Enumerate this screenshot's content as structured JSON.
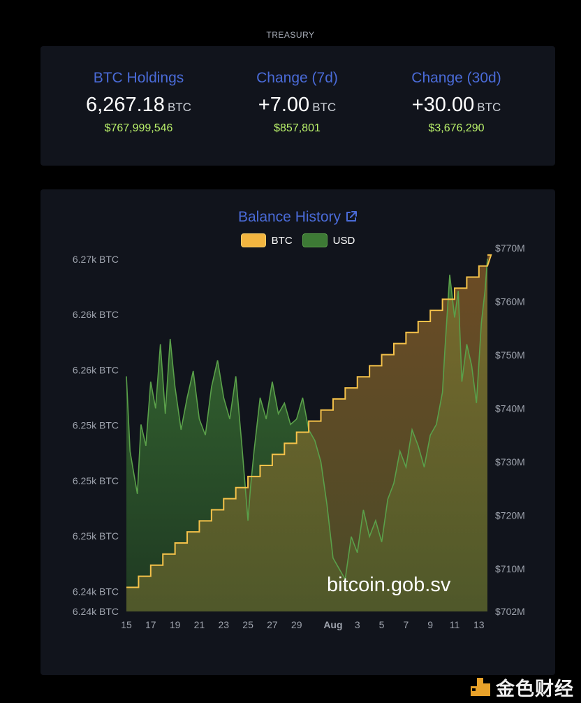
{
  "page": {
    "section_label": "TREASURY"
  },
  "stats": [
    {
      "title": "BTC Holdings",
      "value": "6,267.18",
      "unit": "BTC",
      "usd": "$767,999,546"
    },
    {
      "title": "Change (7d)",
      "value": "+7.00",
      "unit": "BTC",
      "usd": "$857,801"
    },
    {
      "title": "Change (30d)",
      "value": "+30.00",
      "unit": "BTC",
      "usd": "$3,676,290"
    }
  ],
  "colors": {
    "accent": "#4a6bd8",
    "usd_green": "#b9f06a",
    "btc_line": "#f5c24a",
    "usd_line": "#5aa04a",
    "card_bg": "#11141c"
  },
  "chart_data": {
    "type": "area",
    "title": "Balance History",
    "title_icon": "external-link-icon",
    "legend": [
      {
        "label": "BTC",
        "color": "#f5c24a"
      },
      {
        "label": "USD",
        "color": "#5aa04a"
      }
    ],
    "x_tick_labels": [
      "15",
      "17",
      "19",
      "21",
      "23",
      "25",
      "27",
      "29",
      "Aug",
      "3",
      "5",
      "7",
      "9",
      "11",
      "13"
    ],
    "x_tick_days": [
      0,
      2,
      4,
      6,
      8,
      10,
      12,
      14,
      17,
      19,
      21,
      23,
      25,
      27,
      29
    ],
    "x_range_days": [
      0,
      29.7
    ],
    "y_left_tick_labels": [
      "6.27k BTC",
      "6.26k BTC",
      "6.26k BTC",
      "6.25k BTC",
      "6.25k BTC",
      "6.25k BTC",
      "6.24k BTC",
      "6.24k BTC"
    ],
    "y_left_tick_values": [
      6266.8,
      6261.8,
      6256.8,
      6251.8,
      6246.8,
      6241.8,
      6236.8,
      6235
    ],
    "y_left_range": [
      6235,
      6267.8
    ],
    "y_right_tick_labels": [
      "$770M",
      "$760M",
      "$750M",
      "$740M",
      "$730M",
      "$720M",
      "$710M",
      "$702M"
    ],
    "y_right_tick_values": [
      770,
      760,
      750,
      740,
      730,
      720,
      710,
      702
    ],
    "y_right_range": [
      702,
      770
    ],
    "series": [
      {
        "name": "BTC",
        "axis": "left",
        "step": true,
        "values": [
          6237.18,
          6238.18,
          6239.18,
          6240.18,
          6241.18,
          6242.18,
          6243.18,
          6244.18,
          6245.18,
          6246.18,
          6247.18,
          6248.18,
          6249.18,
          6250.18,
          6251.18,
          6252.18,
          6253.18,
          6254.18,
          6255.18,
          6256.18,
          6257.18,
          6258.18,
          6259.18,
          6260.18,
          6261.18,
          6262.18,
          6263.18,
          6264.18,
          6265.18,
          6266.18,
          6267.18
        ]
      },
      {
        "name": "USD",
        "axis": "right",
        "x_days": [
          0,
          0.3,
          0.6,
          0.9,
          1.2,
          1.6,
          2,
          2.4,
          2.8,
          3.2,
          3.6,
          4,
          4.5,
          5,
          5.5,
          6,
          6.5,
          7,
          7.5,
          8,
          8.5,
          9,
          9.5,
          10,
          10.2,
          10.5,
          11,
          11.5,
          12,
          12.5,
          13,
          13.5,
          14,
          14.5,
          15,
          15.5,
          16,
          16.5,
          17,
          17.5,
          18,
          18.5,
          19,
          19.5,
          20,
          20.5,
          21,
          21.5,
          22,
          22.5,
          23,
          23.5,
          24,
          24.5,
          25,
          25.5,
          26,
          26.2,
          26.6,
          27,
          27.3,
          27.6,
          28,
          28.4,
          28.8,
          29.2,
          29.5,
          29.7
        ],
        "values": [
          746,
          732,
          728,
          724,
          737,
          733,
          745,
          740,
          752,
          739,
          753,
          744,
          736,
          742,
          747,
          738,
          735,
          744,
          749,
          742,
          738,
          746,
          733,
          719,
          725,
          732,
          742,
          738,
          745,
          739,
          741,
          737,
          738,
          742,
          736,
          734,
          730,
          722,
          712,
          710,
          708,
          716,
          713,
          721,
          716,
          719,
          715,
          723,
          726,
          732,
          729,
          736,
          733,
          729,
          735,
          737,
          743,
          751,
          765,
          757,
          762,
          745,
          752,
          748,
          741,
          756,
          762,
          768
        ]
      }
    ]
  },
  "watermark": {
    "text": "bitcoin.gob.sv"
  },
  "brand": {
    "text": "金色财经"
  }
}
